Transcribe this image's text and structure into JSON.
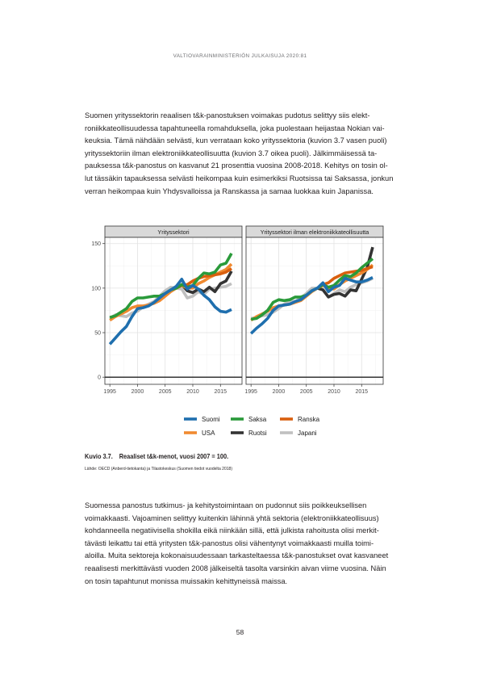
{
  "header": "VALTIOVARAINMINISTERIÖN JULKAISUJA 2020:81",
  "paragraph1": [
    "Suomen yrityssektorin reaalisen t&k-panostuksen voimakas pudotus selittyy siis elekt-",
    "roniikkateollisuudessa tapahtuneella romahduksella, joka puolestaan heijastaa Nokian vai-",
    "keuksia. Tämä nähdään selvästi, kun verrataan koko yrityssektoria (kuvion 3.7 vasen puoli)",
    "yrityssektoriin ilman elektroniikkateollisuutta (kuvion 3.7 oikea puoli). Jälkimmäisessä ta-",
    "pauksessa t&k-panostus on kasvanut 21 prosenttia vuosina 2008-2018. Kehitys on tosin ol-",
    "lut tässäkin tapauksessa selvästi heikompaa kuin esimerkiksi Ruotsissa tai Saksassa, jonkun",
    "verran heikompaa kuin Yhdysvalloissa ja Ranskassa ja samaa luokkaa kuin Japanissa."
  ],
  "chart_data": {
    "type": "line",
    "x": [
      1995,
      1996,
      1997,
      1998,
      1999,
      2000,
      2001,
      2002,
      2003,
      2004,
      2005,
      2006,
      2007,
      2008,
      2009,
      2010,
      2011,
      2012,
      2013,
      2014,
      2015,
      2016,
      2017
    ],
    "ylim": [
      0,
      150
    ],
    "yticks": [
      "0",
      "50",
      "100",
      "150"
    ],
    "xticks": [
      "1995",
      "2000",
      "2005",
      "2010",
      "2015"
    ],
    "xtick_values": [
      1995,
      2000,
      2005,
      2010,
      2015
    ],
    "ytick_values": [
      0,
      50,
      100,
      150
    ],
    "colors": {
      "Suomi": "#1f6fae",
      "Saksa": "#2a9a3a",
      "Ranska": "#d95f0e",
      "USA": "#f08a30",
      "Ruotsi": "#333333",
      "Japani": "#c0c0c0"
    },
    "legend_order": [
      "Suomi",
      "Saksa",
      "Ranska",
      "USA",
      "Ruotsi",
      "Japani"
    ],
    "panels": [
      {
        "title": "Yrityssektori",
        "series": [
          {
            "name": "Japani",
            "values": [
              66,
              70,
              69,
              68,
              72,
              74,
              79,
              82,
              85,
              91,
              97,
              101,
              100,
              99,
              89,
              91,
              96,
              93,
              99,
              100,
              101,
              102,
              105
            ]
          },
          {
            "name": "Ruotsi",
            "values": [
              null,
              null,
              null,
              null,
              null,
              null,
              null,
              null,
              null,
              null,
              null,
              null,
              100,
              104,
              97,
              95,
              99,
              96,
              101,
              96,
              105,
              108,
              119
            ]
          },
          {
            "name": "USA",
            "values": [
              64,
              68,
              71,
              74,
              78,
              80,
              80,
              81,
              83,
              86,
              91,
              96,
              100,
              103,
              100,
              100,
              105,
              108,
              112,
              115,
              118,
              121,
              127
            ]
          },
          {
            "name": "Ranska",
            "values": [
              null,
              null,
              null,
              null,
              null,
              null,
              null,
              null,
              null,
              null,
              null,
              null,
              100,
              103,
              104,
              108,
              111,
              113,
              114,
              115,
              116,
              118,
              122
            ]
          },
          {
            "name": "Saksa",
            "values": [
              67,
              69,
              73,
              77,
              85,
              89,
              89,
              90,
              91,
              91,
              94,
              98,
              100,
              104,
              101,
              103,
              111,
              117,
              116,
              118,
              126,
              128,
              139
            ]
          },
          {
            "name": "Suomi",
            "values": [
              37,
              44,
              51,
              57,
              68,
              77,
              78,
              80,
              84,
              89,
              94,
              98,
              102,
              110,
              99,
              103,
              99,
              92,
              87,
              79,
              74,
              73,
              76
            ]
          }
        ]
      },
      {
        "title": "Yrityssektori ilman elektroniikkateollisuutta",
        "series": [
          {
            "name": "Japani",
            "values": [
              66,
              67,
              69,
              70,
              73,
              77,
              82,
              85,
              85,
              89,
              94,
              100,
              100,
              99,
              90,
              94,
              98,
              96,
              101,
              104,
              106,
              108,
              111
            ]
          },
          {
            "name": "Ruotsi",
            "values": [
              null,
              null,
              null,
              null,
              null,
              null,
              null,
              null,
              null,
              null,
              null,
              null,
              100,
              98,
              90,
              93,
              94,
              91,
              98,
              97,
              110,
              123,
              146
            ]
          },
          {
            "name": "USA",
            "values": [
              64,
              68,
              71,
              74,
              78,
              80,
              81,
              82,
              84,
              86,
              91,
              96,
              100,
              103,
              100,
              99,
              104,
              108,
              111,
              114,
              117,
              121,
              126
            ]
          },
          {
            "name": "Ranska",
            "values": [
              null,
              null,
              null,
              null,
              null,
              null,
              null,
              null,
              null,
              null,
              null,
              null,
              100,
              104,
              106,
              111,
              114,
              117,
              118,
              119,
              120,
              122,
              124
            ]
          },
          {
            "name": "Saksa",
            "values": [
              65,
              66,
              70,
              75,
              84,
              87,
              86,
              87,
              90,
              90,
              92,
              97,
              100,
              104,
              101,
              103,
              109,
              114,
              113,
              117,
              123,
              128,
              133
            ]
          },
          {
            "name": "Suomi",
            "values": [
              49,
              55,
              60,
              66,
              75,
              80,
              81,
              82,
              85,
              87,
              92,
              97,
              100,
              106,
              96,
              101,
              103,
              111,
              109,
              107,
              107,
              109,
              112
            ]
          }
        ]
      }
    ]
  },
  "caption": {
    "number": "Kuvio 3.7.",
    "title": "Reaaliset t&k-menot, vuosi 2007 = 100."
  },
  "source": "Lähde: OECD (Anberd-tietokanta) ja Tilastokeskus (Suomen tiedot vuodelta 2018)",
  "paragraph2": [
    "Suomessa panostus tutkimus- ja kehitystoimintaan on pudonnut siis poikkeuksellisen",
    "voimakkaasti. Vajoaminen selittyy kuitenkin lähinnä yhtä sektoria (elektroniikkateollisuus)",
    "kohdanneella negatiivisella shokilla eikä niinkään sillä, että julkista rahoitusta olisi merkit-",
    "tävästi leikattu tai että yritysten t&k-panostus olisi vähentynyt voimakkaasti muilla toimi-",
    "aloilla. Muita sektoreja kokonaisuudessaan tarkasteltaessa t&k-panostukset ovat kasvaneet",
    "reaalisesti merkittävästi vuoden 2008 jälkeiseltä tasolta varsinkin aivan viime vuosina. Näin",
    "on tosin tapahtunut monissa muissakin kehittyneissä maissa."
  ],
  "page_number": "58"
}
